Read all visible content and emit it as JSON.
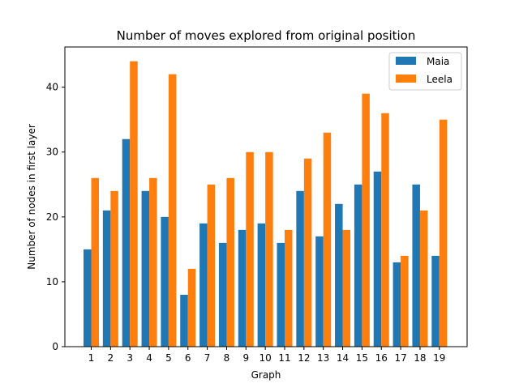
{
  "chart_data": {
    "type": "bar",
    "title": "Number of moves explored from original position",
    "xlabel": "Graph",
    "ylabel": "Number of nodes in first layer",
    "categories": [
      "1",
      "2",
      "3",
      "4",
      "5",
      "6",
      "7",
      "8",
      "9",
      "10",
      "11",
      "12",
      "13",
      "14",
      "15",
      "16",
      "17",
      "18",
      "19"
    ],
    "series": [
      {
        "name": "Maia",
        "color": "#1f77b4",
        "values": [
          15,
          21,
          32,
          24,
          20,
          8,
          19,
          16,
          18,
          19,
          16,
          24,
          17,
          22,
          25,
          27,
          13,
          25,
          14
        ]
      },
      {
        "name": "Leela",
        "color": "#ff7f0e",
        "values": [
          26,
          24,
          44,
          26,
          42,
          12,
          25,
          26,
          30,
          30,
          18,
          29,
          33,
          18,
          39,
          36,
          14,
          21,
          35
        ]
      }
    ],
    "y_ticks": [
      "0",
      "10",
      "20",
      "30",
      "40"
    ],
    "ylim": [
      0,
      46.2
    ],
    "grid": false,
    "legend_position": "top-right"
  }
}
